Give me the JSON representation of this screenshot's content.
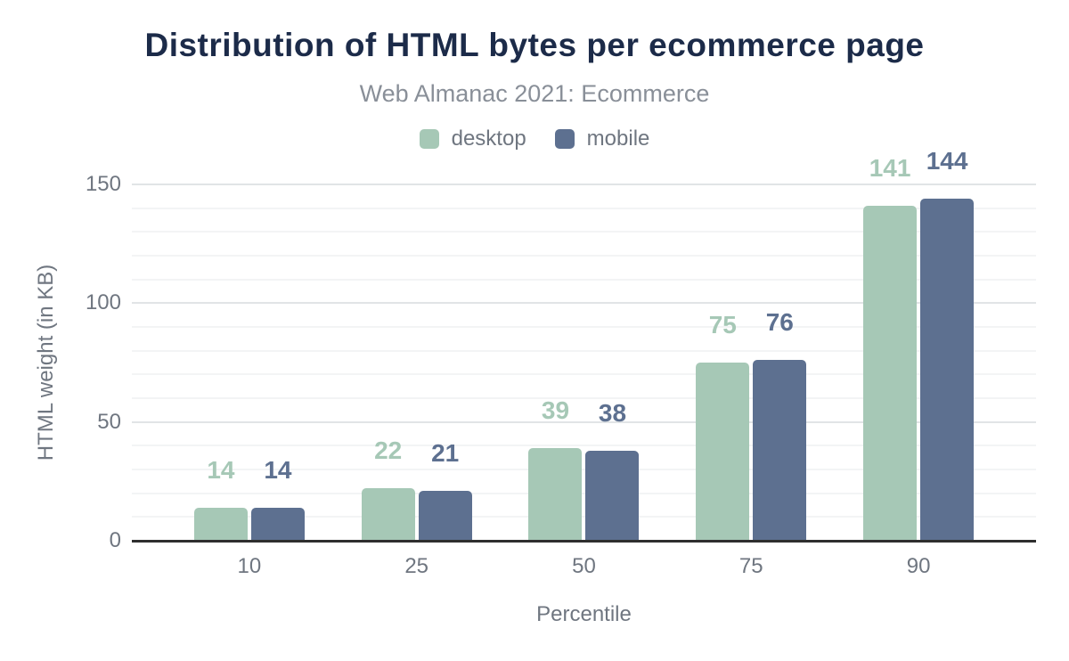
{
  "chart_data": {
    "type": "bar",
    "title": "Distribution of HTML bytes per ecommerce page",
    "subtitle": "Web Almanac 2021: Ecommerce",
    "categories": [
      "10",
      "25",
      "50",
      "75",
      "90"
    ],
    "series": [
      {
        "name": "desktop",
        "color": "#a6c8b6",
        "values": [
          14,
          22,
          39,
          75,
          141
        ]
      },
      {
        "name": "mobile",
        "color": "#5d7090",
        "values": [
          14,
          21,
          38,
          76,
          144
        ]
      }
    ],
    "xlabel": "Percentile",
    "ylabel": "HTML weight (in KB)",
    "ylim": [
      0,
      150
    ],
    "yticks": [
      0,
      50,
      100,
      150
    ],
    "grid": {
      "show": true,
      "minor_step": 10,
      "major_step": 50
    },
    "legend_position": "top",
    "data_labels": true
  },
  "style": {
    "background": "#ffffff",
    "title_color": "#1c2b49",
    "subtitle_color": "#898f98",
    "tick_color": "#6f7680",
    "grid_major_color": "#e1e4e6",
    "grid_minor_color": "#f3f4f5",
    "baseline_color": "#2e2e2e"
  }
}
